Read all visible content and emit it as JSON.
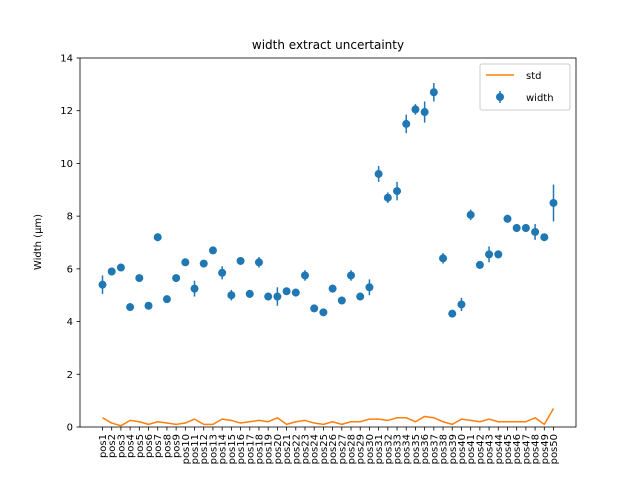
{
  "chart_data": {
    "type": "scatter",
    "title": "width extract uncertainty",
    "xlabel": "",
    "ylabel": "Width (μm)",
    "ylim": [
      0,
      14
    ],
    "yticks": [
      0,
      2,
      4,
      6,
      8,
      10,
      12,
      14
    ],
    "grid": false,
    "legend_position": "top-right",
    "categories": [
      "pos1",
      "pos2",
      "pos3",
      "pos4",
      "pos5",
      "pos6",
      "pos7",
      "pos8",
      "pos9",
      "pos10",
      "pos11",
      "pos12",
      "pos13",
      "pos14",
      "pos15",
      "pos16",
      "pos17",
      "pos18",
      "pos19",
      "pos20",
      "pos21",
      "pos22",
      "pos23",
      "pos24",
      "pos25",
      "pos26",
      "pos27",
      "pos28",
      "pos29",
      "pos30",
      "pos31",
      "pos32",
      "pos33",
      "pos34",
      "pos35",
      "pos36",
      "pos37",
      "pos38",
      "pos39",
      "pos40",
      "pos41",
      "pos42",
      "pos43",
      "pos44",
      "pos45",
      "pos46",
      "pos47",
      "pos48",
      "pos49",
      "pos50"
    ],
    "series": [
      {
        "name": "width",
        "kind": "errorbar",
        "color": "#1f77b4",
        "values": [
          5.4,
          5.9,
          6.05,
          4.55,
          5.65,
          4.6,
          7.2,
          4.85,
          5.65,
          6.25,
          5.25,
          6.2,
          6.7,
          5.85,
          5.0,
          6.3,
          5.05,
          6.25,
          4.95,
          4.95,
          5.15,
          5.1,
          5.75,
          4.5,
          4.35,
          5.25,
          4.8,
          5.75,
          4.95,
          5.3,
          9.6,
          8.7,
          8.95,
          11.5,
          12.05,
          11.95,
          12.7,
          6.4,
          4.3,
          4.65,
          8.05,
          6.15,
          6.55,
          6.55,
          7.9,
          7.55,
          7.55,
          7.4,
          7.2,
          8.5
        ],
        "errors": [
          0.35,
          0.15,
          0.1,
          0.15,
          0.1,
          0.1,
          0.15,
          0.1,
          0.1,
          0.1,
          0.3,
          0.1,
          0.1,
          0.25,
          0.2,
          0.1,
          0.15,
          0.2,
          0.15,
          0.35,
          0.1,
          0.15,
          0.2,
          0.1,
          0.1,
          0.15,
          0.1,
          0.2,
          0.15,
          0.3,
          0.3,
          0.2,
          0.35,
          0.35,
          0.2,
          0.4,
          0.35,
          0.2,
          0.1,
          0.25,
          0.2,
          0.15,
          0.3,
          0.15,
          0.15,
          0.15,
          0.15,
          0.3,
          0.1,
          0.7
        ]
      },
      {
        "name": "std",
        "kind": "line",
        "color": "#ff7f0e",
        "values": [
          0.35,
          0.15,
          0.05,
          0.25,
          0.2,
          0.1,
          0.2,
          0.15,
          0.1,
          0.15,
          0.3,
          0.1,
          0.1,
          0.3,
          0.25,
          0.15,
          0.2,
          0.25,
          0.2,
          0.35,
          0.1,
          0.2,
          0.25,
          0.15,
          0.1,
          0.2,
          0.1,
          0.2,
          0.2,
          0.3,
          0.3,
          0.25,
          0.35,
          0.35,
          0.2,
          0.4,
          0.35,
          0.2,
          0.1,
          0.3,
          0.25,
          0.2,
          0.3,
          0.2,
          0.2,
          0.2,
          0.2,
          0.35,
          0.1,
          0.7
        ]
      }
    ]
  }
}
